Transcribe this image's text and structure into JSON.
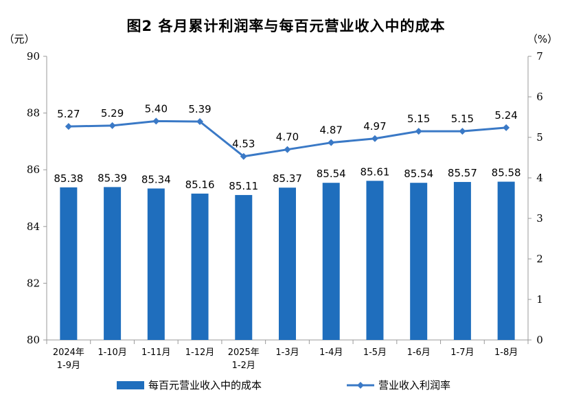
{
  "colors": {
    "bar": "#1f6ebd",
    "line": "#3a79c6",
    "axis": "#999999"
  },
  "chart_data": {
    "type": "bar",
    "title": "图2  各月累计利润率与每百元营业收入中的成本",
    "left_unit": "（元）",
    "right_unit": "（%）",
    "categories": [
      [
        "2024年",
        "1-9月"
      ],
      [
        "1-10月"
      ],
      [
        "1-11月"
      ],
      [
        "1-12月"
      ],
      [
        "2025年",
        "1-2月"
      ],
      [
        "1-3月"
      ],
      [
        "1-4月"
      ],
      [
        "1-5月"
      ],
      [
        "1-6月"
      ],
      [
        "1-7月"
      ],
      [
        "1-8月"
      ]
    ],
    "ylim_left": [
      80,
      90
    ],
    "ylim_right": [
      0,
      7
    ],
    "yticks_left": [
      80,
      82,
      84,
      86,
      88,
      90
    ],
    "yticks_right": [
      0,
      1,
      2,
      3,
      4,
      5,
      6,
      7
    ],
    "series": [
      {
        "name": "每百元营业收入中的成本",
        "type": "bar",
        "axis": "left",
        "values": [
          85.38,
          85.39,
          85.34,
          85.16,
          85.11,
          85.37,
          85.54,
          85.61,
          85.54,
          85.57,
          85.58
        ]
      },
      {
        "name": "营业收入利润率",
        "type": "line",
        "axis": "right",
        "values": [
          5.27,
          5.29,
          5.4,
          5.39,
          4.53,
          4.7,
          4.87,
          4.97,
          5.15,
          5.15,
          5.24
        ]
      }
    ],
    "grid": false,
    "legend_position": "bottom"
  }
}
